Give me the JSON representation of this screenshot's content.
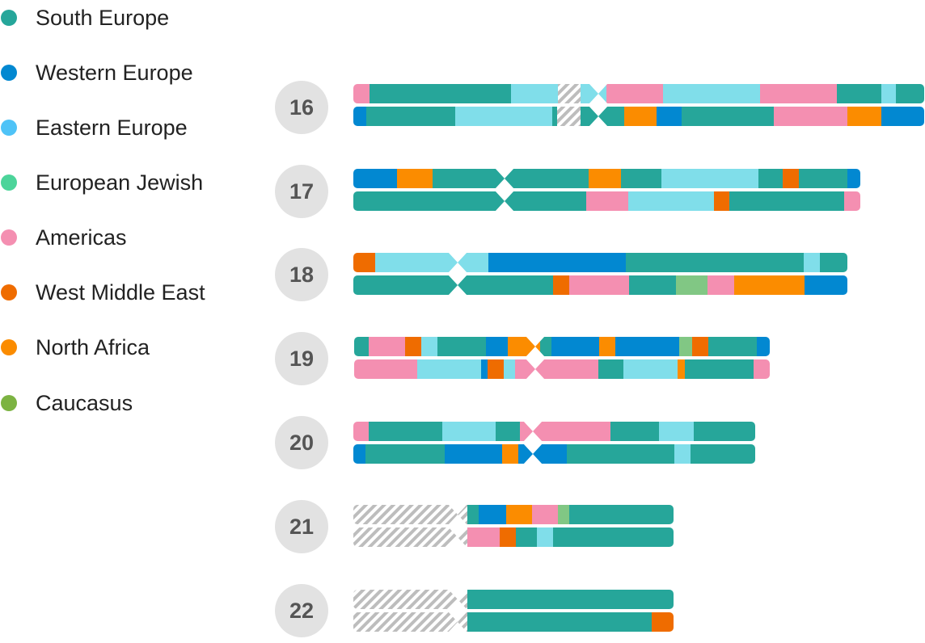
{
  "legend": [
    {
      "label": "South Europe",
      "color": "#26a69a"
    },
    {
      "label": "Western Europe",
      "color": "#0288d1"
    },
    {
      "label": "Eastern Europe",
      "color": "#4fc3f7"
    },
    {
      "label": "European Jewish",
      "color": "#4cd49a"
    },
    {
      "label": "Americas",
      "color": "#f48fb1"
    },
    {
      "label": "West Middle East",
      "color": "#ef6c00"
    },
    {
      "label": "North Africa",
      "color": "#fb8c00"
    },
    {
      "label": "Caucasus",
      "color": "#7cb342"
    }
  ],
  "palette": {
    "southEurope": "#26a69a",
    "westernEurope": "#0288d1",
    "easternEuropeBar": "#80deea",
    "americas": "#f48fb1",
    "westMiddleEast": "#ef6c00",
    "northAfrica": "#fb8c00",
    "caucasus": "#81c784",
    "noData": "#bdbdbd"
  },
  "chromosomes": [
    {
      "number": "16"
    },
    {
      "number": "17"
    },
    {
      "number": "18"
    },
    {
      "number": "19"
    },
    {
      "number": "20"
    },
    {
      "number": "21"
    },
    {
      "number": "22"
    }
  ]
}
